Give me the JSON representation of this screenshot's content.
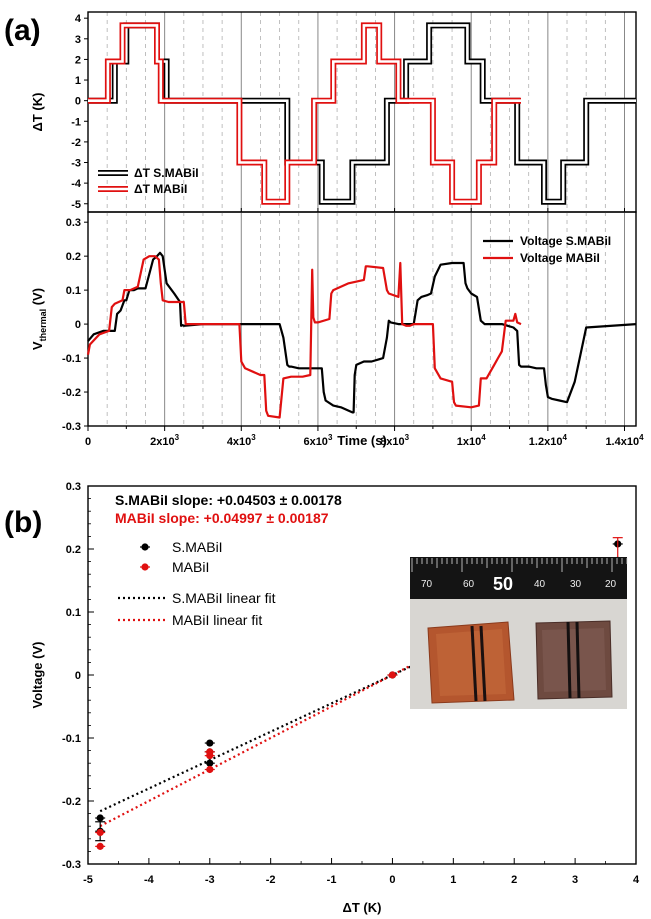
{
  "figure": {
    "panel_a_label": "(a)",
    "panel_b_label": "(b)"
  },
  "chart_data": [
    {
      "type": "line",
      "panel": "a-top",
      "ylabel": "ΔT (K)",
      "xlim": [
        0,
        14300
      ],
      "ylim": [
        -5.4,
        4.3
      ],
      "yticks": [
        -5,
        -4,
        -3,
        -2,
        -1,
        0,
        1,
        2,
        3,
        4
      ],
      "legend_position": "bottom-left",
      "series": [
        {
          "name": "ΔT S.MABiI",
          "color": "#000000",
          "x": [
            0,
            700,
            700,
            1000,
            1000,
            1250,
            1250,
            1800,
            1800,
            2050,
            2050,
            2450,
            2450,
            4000,
            4000,
            5200,
            5200,
            6100,
            6100,
            6900,
            6900,
            7800,
            7800,
            8300,
            8300,
            8900,
            8900,
            9250,
            9250,
            9900,
            9900,
            10300,
            10300,
            11200,
            11200,
            11900,
            11900,
            12400,
            12400,
            13000,
            13000,
            14300
          ],
          "y": [
            0,
            0,
            1.9,
            1.9,
            3.65,
            3.65,
            3.65,
            3.65,
            1.9,
            1.9,
            0,
            0,
            0,
            0,
            0,
            0,
            -3,
            -3,
            -4.9,
            -4.9,
            -3,
            -3,
            0,
            0,
            1.9,
            1.9,
            3.65,
            3.65,
            3.65,
            3.65,
            1.9,
            1.9,
            0,
            0,
            -3,
            -3,
            -4.9,
            -4.9,
            -3,
            -3,
            0,
            0
          ]
        },
        {
          "name": "ΔT MABiI",
          "color": "#e01010",
          "x": [
            0,
            520,
            520,
            900,
            900,
            1100,
            1100,
            1800,
            1800,
            1900,
            1900,
            2500,
            2500,
            3950,
            3950,
            4600,
            4600,
            5200,
            5200,
            5900,
            5900,
            6400,
            6400,
            7200,
            7200,
            7600,
            7600,
            8100,
            8100,
            9000,
            9000,
            9500,
            9500,
            10200,
            10200,
            10600,
            10600,
            11300
          ],
          "y": [
            0,
            0,
            1.9,
            1.9,
            3.65,
            3.65,
            3.65,
            3.65,
            1.9,
            1.9,
            0,
            0,
            0,
            0,
            -3,
            -3,
            -4.9,
            -4.9,
            -3,
            -3,
            0,
            0,
            1.9,
            1.9,
            3.65,
            3.65,
            1.9,
            1.9,
            0,
            0,
            -3,
            -3,
            -4.9,
            -4.9,
            -3,
            -3,
            0,
            0
          ]
        }
      ]
    },
    {
      "type": "line",
      "panel": "a-bottom",
      "xlabel": "Time (s)",
      "ylabel": "V",
      "ylabel_sub": "thermal",
      "ylabel_unit": " (V)",
      "xlim": [
        0,
        14300
      ],
      "ylim": [
        -0.3,
        0.33
      ],
      "yticks": [
        -0.3,
        -0.2,
        -0.1,
        0.0,
        0.1,
        0.2,
        0.3
      ],
      "ytick_labels": [
        "-0.3",
        "-0.2",
        "-0.1",
        "0",
        "0.1",
        "0.2",
        "0.3"
      ],
      "xticks": [
        0,
        2000,
        4000,
        6000,
        8000,
        10000,
        12000,
        14000
      ],
      "xtick_base": [
        "0",
        "2x10",
        "4x10",
        "6x10",
        "8x10",
        "1x10",
        "1.2x10",
        "1.4x10"
      ],
      "xtick_exp": [
        "",
        "3",
        "3",
        "3",
        "3",
        "4",
        "4",
        "4"
      ],
      "legend_position": "top-right",
      "series": [
        {
          "name": "Voltage S.MABiI",
          "color": "#000000",
          "x": [
            0,
            150,
            400,
            700,
            760,
            850,
            950,
            1000,
            1080,
            1200,
            1300,
            1500,
            1700,
            1800,
            1880,
            1950,
            2050,
            2250,
            2400,
            2430,
            2460,
            2500,
            3000,
            4000,
            5000,
            5100,
            5200,
            5250,
            5300,
            5500,
            6000,
            6100,
            6150,
            6200,
            6400,
            6600,
            6900,
            6930,
            6960,
            7000,
            7200,
            7400,
            7700,
            7800,
            7850,
            7900,
            8100,
            8300,
            8500,
            8550,
            8600,
            8700,
            8850,
            8950,
            9050,
            9200,
            9500,
            9800,
            9850,
            9900,
            10000,
            10150,
            10250,
            10350,
            10450,
            10800,
            11100,
            11200,
            11250,
            11300,
            11500,
            11700,
            11900,
            11950,
            12000,
            12100,
            12300,
            12500,
            12700,
            13000,
            14300
          ],
          "y": [
            -0.05,
            -0.03,
            -0.02,
            -0.02,
            0.03,
            0.04,
            0.07,
            0.07,
            0.1,
            0.1,
            0.105,
            0.105,
            0.19,
            0.2,
            0.21,
            0.2,
            0.12,
            0.09,
            0.065,
            -0.005,
            -0.003,
            -0.005,
            0.0,
            0.0,
            0.0,
            -0.04,
            -0.12,
            -0.125,
            -0.125,
            -0.13,
            -0.13,
            -0.13,
            -0.2,
            -0.225,
            -0.24,
            -0.245,
            -0.26,
            -0.26,
            -0.15,
            -0.12,
            -0.11,
            -0.11,
            -0.1,
            -0.04,
            0.01,
            0.005,
            0.0,
            0.0,
            0.0,
            0.035,
            0.07,
            0.08,
            0.085,
            0.09,
            0.14,
            0.175,
            0.18,
            0.18,
            0.12,
            0.105,
            0.09,
            0.08,
            0.01,
            0.0,
            0.0,
            0.0,
            -0.01,
            -0.02,
            -0.12,
            -0.125,
            -0.125,
            -0.13,
            -0.13,
            -0.18,
            -0.215,
            -0.22,
            -0.225,
            -0.23,
            -0.17,
            -0.01,
            0.0
          ]
        },
        {
          "name": "Voltage MABiI",
          "color": "#e01010",
          "x": [
            0,
            50,
            300,
            550,
            620,
            700,
            900,
            950,
            1000,
            1100,
            1300,
            1450,
            1600,
            1750,
            1850,
            1900,
            1950,
            2100,
            2500,
            2550,
            3000,
            3950,
            4000,
            4100,
            4500,
            4600,
            4650,
            4700,
            5000,
            5100,
            5300,
            5600,
            5800,
            5850,
            5880,
            5920,
            6000,
            6300,
            6350,
            6400,
            6800,
            7200,
            7250,
            7300,
            7700,
            7800,
            7850,
            8100,
            8150,
            8200,
            8300,
            8350,
            8400,
            8500,
            9000,
            9050,
            9200,
            9500,
            9550,
            9600,
            10000,
            10200,
            10250,
            10400,
            10600,
            10700,
            10800,
            10900,
            11100,
            11150,
            11200,
            11300
          ],
          "y": [
            -0.09,
            -0.06,
            -0.03,
            -0.02,
            0.05,
            0.06,
            0.07,
            0.1,
            0.1,
            0.1,
            0.11,
            0.19,
            0.2,
            0.2,
            0.19,
            0.12,
            0.07,
            0.065,
            0.065,
            0.0,
            0.0,
            0.0,
            -0.11,
            -0.13,
            -0.15,
            -0.15,
            -0.255,
            -0.27,
            -0.275,
            -0.16,
            -0.155,
            -0.155,
            -0.15,
            0.16,
            0.02,
            0.005,
            0.005,
            0.015,
            0.09,
            0.1,
            0.12,
            0.13,
            0.17,
            0.17,
            0.165,
            0.1,
            0.09,
            0.08,
            0.18,
            0.0,
            -0.005,
            -0.005,
            -0.005,
            0.0,
            0.0,
            -0.13,
            -0.16,
            -0.17,
            -0.23,
            -0.24,
            -0.245,
            -0.24,
            -0.16,
            -0.16,
            -0.12,
            -0.1,
            -0.08,
            0.01,
            0.01,
            0.03,
            0.005,
            0.0
          ]
        }
      ]
    },
    {
      "type": "scatter",
      "panel": "b",
      "xlabel": "ΔT (K)",
      "ylabel": "Voltage (V)",
      "xlim": [
        -5,
        4
      ],
      "ylim": [
        -0.3,
        0.3
      ],
      "xticks": [
        -5,
        -4,
        -3,
        -2,
        -1,
        0,
        1,
        2,
        3,
        4
      ],
      "yticks": [
        -0.3,
        -0.2,
        -0.1,
        0.0,
        0.1,
        0.2,
        0.3
      ],
      "ytick_labels": [
        "-0.3",
        "-0.2",
        "-0.1",
        "0",
        "0.1",
        "0.2",
        "0.3"
      ],
      "annotations": [
        {
          "text": "S.MABiI slope: +0.04503 ± 0.00178",
          "color": "#000000"
        },
        {
          "text": "MABiI slope: +0.04997 ± 0.00187",
          "color": "#e01010"
        }
      ],
      "legend_position": "top-left",
      "series": [
        {
          "name": "S.MABiI",
          "color": "#000000",
          "x": [
            -4.8,
            -4.8,
            -3,
            -3,
            -3,
            0,
            1.9,
            1.9,
            1.9,
            3.7,
            3.7
          ],
          "y": [
            -0.227,
            -0.248,
            -0.14,
            -0.108,
            -0.122,
            0.0,
            0.1,
            0.092,
            0.085,
            0.208,
            0.182
          ],
          "err": [
            0,
            0.015,
            0,
            0,
            0,
            0,
            0,
            0,
            0,
            0,
            0
          ]
        },
        {
          "name": "MABiI",
          "color": "#e01010",
          "x": [
            -4.8,
            -4.8,
            -3,
            -3,
            -3,
            0,
            1.9,
            1.9,
            1.9,
            3.7,
            3.7
          ],
          "y": [
            -0.25,
            -0.272,
            -0.15,
            -0.122,
            -0.128,
            0.0,
            0.095,
            0.075,
            0.062,
            0.165,
            0.15
          ],
          "err": [
            0,
            0,
            0,
            0,
            0,
            0,
            0,
            0,
            0,
            0,
            0.068
          ]
        },
        {
          "name": "S.MABiI linear fit",
          "color": "#000000",
          "style": "dotted",
          "slope": 0.04503,
          "x": [
            -4.8,
            3.7
          ]
        },
        {
          "name": "MABiI linear fit",
          "color": "#e01010",
          "style": "dotted",
          "slope": 0.04997,
          "x": [
            -4.8,
            3.7
          ]
        }
      ],
      "inset": {
        "ruler_numbers": [
          "70",
          "60",
          "50",
          "40",
          "30",
          "20"
        ]
      }
    }
  ]
}
